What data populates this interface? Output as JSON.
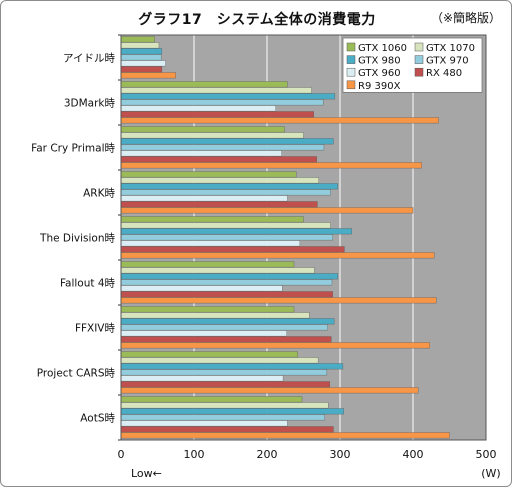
{
  "chart_data": {
    "type": "bar",
    "orientation": "horizontal",
    "title": "グラフ17　システム全体の消費電力",
    "note": "（※簡略版）",
    "x_unit": "(W)",
    "low_label": "Low←",
    "xlim": [
      0,
      500
    ],
    "x_ticks": [
      0,
      100,
      200,
      300,
      400,
      500
    ],
    "grid": true,
    "legend_position": "top-right",
    "categories": [
      "アイドル時",
      "3DMark時",
      "Far Cry Primal時",
      "ARK時",
      "The Division時",
      "Fallout 4時",
      "FFXIV時",
      "Project CARS時",
      "AotS時"
    ],
    "series": [
      {
        "name": "GTX 1060",
        "color": "#9bbb59",
        "values": [
          46,
          228,
          224,
          240,
          250,
          237,
          237,
          242,
          248
        ]
      },
      {
        "name": "GTX 1070",
        "color": "#d7e4bd",
        "values": [
          52,
          261,
          250,
          271,
          287,
          265,
          258,
          270,
          284
        ]
      },
      {
        "name": "GTX 980",
        "color": "#4bacc6",
        "values": [
          56,
          293,
          291,
          297,
          316,
          297,
          292,
          304,
          305
        ]
      },
      {
        "name": "GTX 970",
        "color": "#93cddd",
        "values": [
          55,
          277,
          278,
          287,
          290,
          289,
          283,
          282,
          279
        ]
      },
      {
        "name": "GTX 960",
        "color": "#dbeef4",
        "values": [
          61,
          212,
          220,
          228,
          245,
          221,
          227,
          222,
          228
        ]
      },
      {
        "name": "RX 480",
        "color": "#c0504d",
        "values": [
          56,
          264,
          268,
          269,
          306,
          290,
          288,
          286,
          291
        ]
      },
      {
        "name": "R9 390X",
        "color": "#f79646",
        "values": [
          75,
          435,
          412,
          400,
          429,
          432,
          423,
          407,
          450
        ]
      }
    ]
  }
}
